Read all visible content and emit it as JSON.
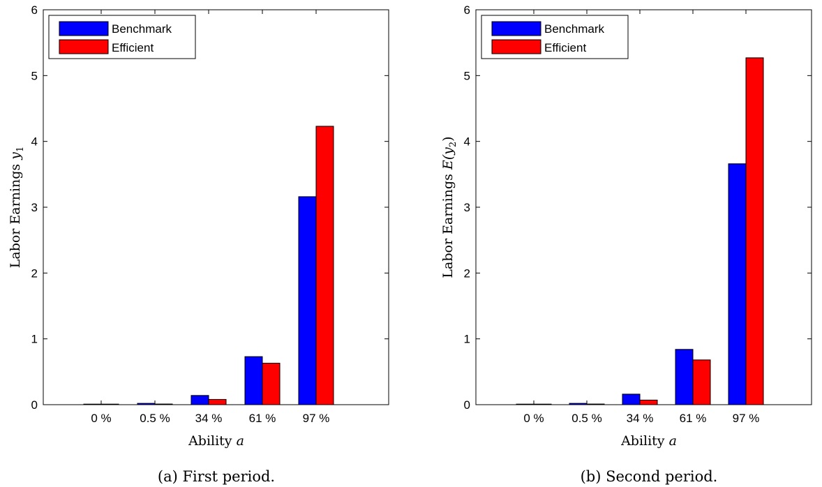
{
  "chart_data": [
    {
      "type": "bar",
      "caption": "(a) First period.",
      "xlabel": "Ability",
      "xlabel_var": "a",
      "ylabel": "Labor Earnings",
      "ylabel_var": "y",
      "ylabel_sub": "1",
      "categories": [
        "0 %",
        "0.5 %",
        "34 %",
        "61 %",
        "97 %"
      ],
      "ylim": [
        0,
        6
      ],
      "yticks": [
        "0",
        "1",
        "2",
        "3",
        "4",
        "5",
        "6"
      ],
      "legend_position": "top-left",
      "series": [
        {
          "name": "Benchmark",
          "color": "#0000ff",
          "values": [
            0.0,
            0.02,
            0.14,
            0.73,
            3.16
          ]
        },
        {
          "name": "Efficient",
          "color": "#ff0000",
          "values": [
            0.0,
            0.01,
            0.08,
            0.63,
            4.23
          ]
        }
      ]
    },
    {
      "type": "bar",
      "caption": "(b) Second period.",
      "xlabel": "Ability",
      "xlabel_var": "a",
      "ylabel": "Labor Earnings",
      "ylabel_var": "E(y",
      "ylabel_sub": "2",
      "ylabel_close": ")",
      "categories": [
        "0 %",
        "0.5 %",
        "34 %",
        "61 %",
        "97 %"
      ],
      "ylim": [
        0,
        6
      ],
      "yticks": [
        "0",
        "1",
        "2",
        "3",
        "4",
        "5",
        "6"
      ],
      "legend_position": "top-left",
      "series": [
        {
          "name": "Benchmark",
          "color": "#0000ff",
          "values": [
            0.0,
            0.02,
            0.16,
            0.84,
            3.66
          ]
        },
        {
          "name": "Efficient",
          "color": "#ff0000",
          "values": [
            0.0,
            0.01,
            0.07,
            0.68,
            5.27
          ]
        }
      ]
    }
  ]
}
